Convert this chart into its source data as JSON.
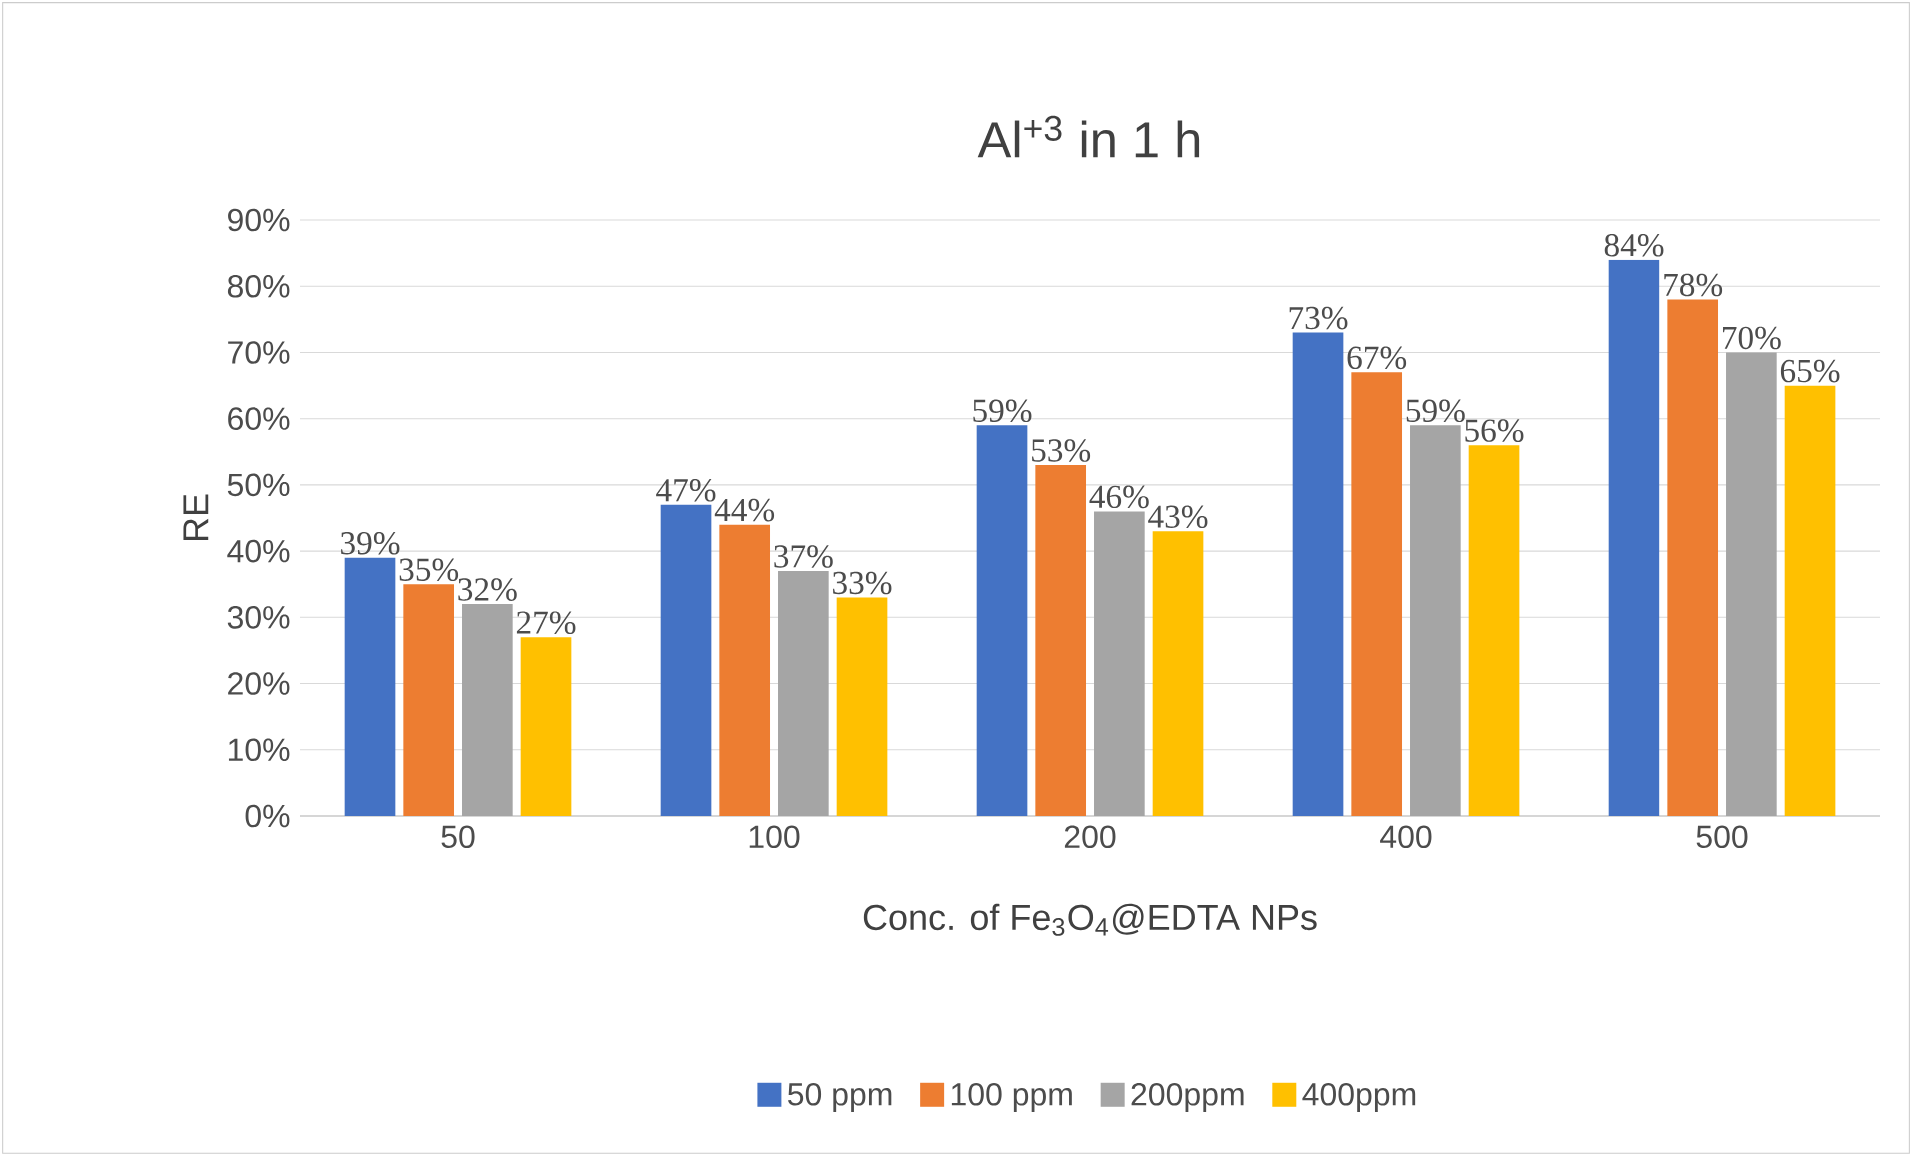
{
  "chart_data": {
    "type": "bar",
    "title": "Al$^{+3}$ in 1 h",
    "xlabel": "Conc. of Fe$_{3}$O$_{4}$@EDTA NPs",
    "ylabel": "RE",
    "categories": [
      "50",
      "100",
      "200",
      "400",
      "500"
    ],
    "series": [
      {
        "name": "50 ppm",
        "color": "#4472c4",
        "values": [
          39,
          47,
          59,
          73,
          84
        ],
        "value_labels": [
          "39%",
          "47%",
          "59%",
          "73%",
          "84%"
        ]
      },
      {
        "name": "100 ppm",
        "color": "#ed7d31",
        "values": [
          35,
          44,
          53,
          67,
          78
        ],
        "value_labels": [
          "35%",
          "44%",
          "53%",
          "67%",
          "78%"
        ]
      },
      {
        "name": "200ppm",
        "color": "#a5a5a5",
        "values": [
          32,
          37,
          46,
          59,
          70
        ],
        "value_labels": [
          "32%",
          "37%",
          "46%",
          "59%",
          "70%"
        ]
      },
      {
        "name": "400ppm",
        "color": "#ffc000",
        "values": [
          27,
          33,
          43,
          56,
          65
        ],
        "value_labels": [
          "27%",
          "33%",
          "43%",
          "56%",
          "65%"
        ]
      }
    ],
    "ylim": [
      0,
      90
    ],
    "yticks": [
      {
        "value": 0,
        "label": "0%"
      },
      {
        "value": 10,
        "label": "10%"
      },
      {
        "value": 20,
        "label": "20%"
      },
      {
        "value": 30,
        "label": "30%"
      },
      {
        "value": 40,
        "label": "40%"
      },
      {
        "value": 50,
        "label": "50%"
      },
      {
        "value": 60,
        "label": "60%"
      },
      {
        "value": 70,
        "label": "70%"
      },
      {
        "value": 80,
        "label": "80%"
      },
      {
        "value": 90,
        "label": "90%"
      }
    ],
    "grid": "y",
    "legend": "bottom"
  }
}
